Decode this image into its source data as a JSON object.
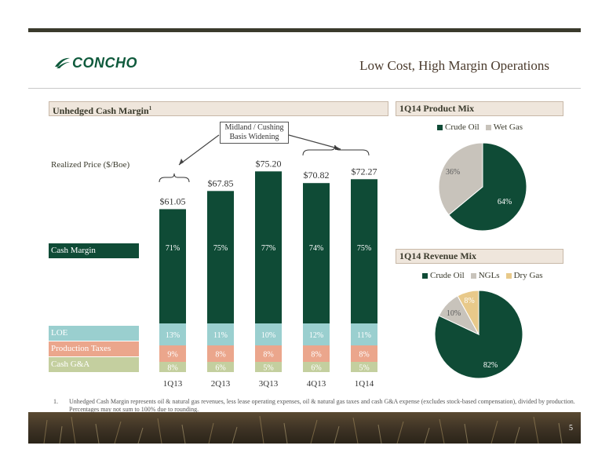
{
  "header": {
    "logo_text": "CONCHO",
    "slide_title": "Low Cost, High Margin Operations"
  },
  "sections": {
    "cash_margin": "Unhedged Cash Margin",
    "cash_margin_sup": "1",
    "product_mix": "1Q14 Product Mix",
    "revenue_mix": "1Q14 Revenue Mix"
  },
  "row_labels": {
    "realized_price": "Realized Price ($/Boe)",
    "cash_margin": "Cash Margin",
    "loe": "LOE",
    "production_taxes": "Production Taxes",
    "cash_ga": "Cash G&A"
  },
  "callout": {
    "line1": "Midland / Cushing",
    "line2": "Basis Widening"
  },
  "colors": {
    "cash_margin": "#0f4b36",
    "loe": "#9acfcf",
    "production_taxes": "#eba68c",
    "cash_ga": "#c4cf9f",
    "crude_oil": "#0f4b36",
    "wet_gas": "#c8c3bb",
    "ngls": "#c8c3bb",
    "dry_gas": "#e8c98a"
  },
  "chart_data": [
    {
      "type": "bar",
      "title": "Unhedged Cash Margin",
      "categories": [
        "1Q13",
        "2Q13",
        "3Q13",
        "4Q13",
        "1Q14"
      ],
      "totals": [
        61.05,
        67.85,
        75.2,
        70.82,
        72.27
      ],
      "total_labels": [
        "$61.05",
        "$67.85",
        "$75.20",
        "$70.82",
        "$72.27"
      ],
      "series": [
        {
          "name": "Cash G&A",
          "values": [
            8,
            6,
            5,
            6,
            5
          ],
          "labels": [
            "8%",
            "6%",
            "5%",
            "6%",
            "5%"
          ]
        },
        {
          "name": "Production Taxes",
          "values": [
            9,
            8,
            8,
            8,
            8
          ],
          "labels": [
            "9%",
            "8%",
            "8%",
            "8%",
            "8%"
          ]
        },
        {
          "name": "LOE",
          "values": [
            13,
            11,
            10,
            12,
            11
          ],
          "labels": [
            "13%",
            "11%",
            "10%",
            "12%",
            "11%"
          ]
        },
        {
          "name": "Cash Margin",
          "values": [
            71,
            75,
            77,
            74,
            75
          ],
          "labels": [
            "71%",
            "75%",
            "77%",
            "74%",
            "75%"
          ]
        }
      ]
    },
    {
      "type": "pie",
      "title": "1Q14 Product Mix",
      "labels": [
        "Crude Oil",
        "Wet Gas"
      ],
      "values": [
        64,
        36
      ],
      "value_labels": [
        "64%",
        "36%"
      ]
    },
    {
      "type": "pie",
      "title": "1Q14 Revenue Mix",
      "labels": [
        "Crude Oil",
        "NGLs",
        "Dry Gas"
      ],
      "values": [
        82,
        10,
        8
      ],
      "value_labels": [
        "82%",
        "10%",
        "8%"
      ]
    }
  ],
  "footnote": {
    "num": "1.",
    "text": "Unhedged Cash Margin represents oil & natural gas revenues, less lease operating expenses, oil & natural gas taxes and cash G&A expense (excludes stock-based compensation), divided by production. Percentages may not sum to 100% due to rounding."
  },
  "page_number": "5"
}
